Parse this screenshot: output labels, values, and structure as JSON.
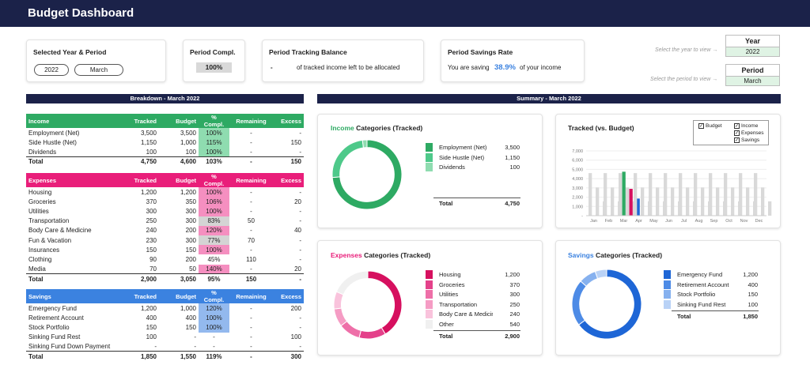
{
  "header": {
    "title": "Budget Dashboard"
  },
  "kpi": {
    "selected_label": "Selected Year & Period",
    "year_pill": "2022",
    "period_pill": "March",
    "compl_label": "Period Compl.",
    "compl_value": "100%",
    "tracking_label": "Period Tracking Balance",
    "tracking_value": "-",
    "tracking_text": "of tracked income left to be allocated",
    "savings_label": "Period Savings Rate",
    "savings_prefix": "You are saving",
    "savings_value": "38.9%",
    "savings_suffix": "of your income"
  },
  "selectors": {
    "year_hint": "Select the year to view →",
    "year_label": "Year",
    "year_value": "2022",
    "period_hint": "Select the period to view →",
    "period_label": "Period",
    "period_value": "March"
  },
  "breakdown_title": "Breakdown - March 2022",
  "summary_title": "Summary - March 2022",
  "columns": [
    "Tracked",
    "Budget",
    "% Compl.",
    "Remaining",
    "Excess"
  ],
  "income": {
    "name": "Income",
    "color": "#2eaa63",
    "rows": [
      {
        "name": "Employment (Net)",
        "tracked": "3,500",
        "budget": "3,500",
        "pct": "100%",
        "remaining": "-",
        "excess": "-",
        "fill": "#8fdcb0"
      },
      {
        "name": "Side Hustle (Net)",
        "tracked": "1,150",
        "budget": "1,000",
        "pct": "115%",
        "remaining": "-",
        "excess": "150",
        "fill": "#8fdcb0"
      },
      {
        "name": "Dividends",
        "tracked": "100",
        "budget": "100",
        "pct": "100%",
        "remaining": "-",
        "excess": "-",
        "fill": "#8fdcb0"
      }
    ],
    "total": {
      "name": "Total",
      "tracked": "4,750",
      "budget": "4,600",
      "pct": "103%",
      "remaining": "-",
      "excess": "150"
    }
  },
  "expenses": {
    "name": "Expenses",
    "color": "#e91e7a",
    "rows": [
      {
        "name": "Housing",
        "tracked": "1,200",
        "budget": "1,200",
        "pct": "100%",
        "remaining": "-",
        "excess": "-",
        "fill": "#f58fc0"
      },
      {
        "name": "Groceries",
        "tracked": "370",
        "budget": "350",
        "pct": "106%",
        "remaining": "-",
        "excess": "20",
        "fill": "#f58fc0"
      },
      {
        "name": "Utilities",
        "tracked": "300",
        "budget": "300",
        "pct": "100%",
        "remaining": "-",
        "excess": "-",
        "fill": "#f58fc0"
      },
      {
        "name": "Transportation",
        "tracked": "250",
        "budget": "300",
        "pct": "83%",
        "remaining": "50",
        "excess": "-",
        "fill": "#d4d4d4"
      },
      {
        "name": "Body Care & Medicine",
        "tracked": "240",
        "budget": "200",
        "pct": "120%",
        "remaining": "-",
        "excess": "40",
        "fill": "#f58fc0"
      },
      {
        "name": "Fun & Vacation",
        "tracked": "230",
        "budget": "300",
        "pct": "77%",
        "remaining": "70",
        "excess": "-",
        "fill": "#d4d4d4"
      },
      {
        "name": "Insurances",
        "tracked": "150",
        "budget": "150",
        "pct": "100%",
        "remaining": "-",
        "excess": "-",
        "fill": "#f58fc0"
      },
      {
        "name": "Clothing",
        "tracked": "90",
        "budget": "200",
        "pct": "45%",
        "remaining": "110",
        "excess": "-",
        "fill": "#ffffff"
      },
      {
        "name": "Media",
        "tracked": "70",
        "budget": "50",
        "pct": "140%",
        "remaining": "-",
        "excess": "20",
        "fill": "#f58fc0"
      }
    ],
    "total": {
      "name": "Total",
      "tracked": "2,900",
      "budget": "3,050",
      "pct": "95%",
      "remaining": "150",
      "excess": "-"
    }
  },
  "savings": {
    "name": "Savings",
    "color": "#3b82e0",
    "rows": [
      {
        "name": "Emergency Fund",
        "tracked": "1,200",
        "budget": "1,000",
        "pct": "120%",
        "remaining": "-",
        "excess": "200",
        "fill": "#93b9ee"
      },
      {
        "name": "Retirement Account",
        "tracked": "400",
        "budget": "400",
        "pct": "100%",
        "remaining": "-",
        "excess": "-",
        "fill": "#93b9ee"
      },
      {
        "name": "Stock Portfolio",
        "tracked": "150",
        "budget": "150",
        "pct": "100%",
        "remaining": "-",
        "excess": "-",
        "fill": "#93b9ee"
      },
      {
        "name": "Sinking Fund Rest",
        "tracked": "100",
        "budget": "-",
        "pct": "-",
        "remaining": "-",
        "excess": "100",
        "fill": "#ffffff"
      },
      {
        "name": "Sinking Fund Down Payment",
        "tracked": "-",
        "budget": "-",
        "pct": "-",
        "remaining": "-",
        "excess": "-",
        "fill": "#ffffff"
      }
    ],
    "total": {
      "name": "Total",
      "tracked": "1,850",
      "budget": "1,550",
      "pct": "119%",
      "remaining": "-",
      "excess": "300"
    }
  },
  "income_chart": {
    "title_colored": "Income",
    "title_rest": " Categories (Tracked)",
    "items": [
      {
        "name": "Employment (Net)",
        "value": "3,500",
        "color": "#2eaa63"
      },
      {
        "name": "Side Hustle (Net)",
        "value": "1,150",
        "color": "#4ec98a"
      },
      {
        "name": "Dividends",
        "value": "100",
        "color": "#8fdcb0"
      }
    ],
    "total_label": "Total",
    "total_value": "4,750"
  },
  "expenses_chart": {
    "title_colored": "Expenses",
    "title_rest": " Categories (Tracked)",
    "items": [
      {
        "name": "Housing",
        "value": "1,200",
        "color": "#d6105f"
      },
      {
        "name": "Groceries",
        "value": "370",
        "color": "#e4418a"
      },
      {
        "name": "Utilities",
        "value": "300",
        "color": "#ee6fa8"
      },
      {
        "name": "Transportation",
        "value": "250",
        "color": "#f59cc4"
      },
      {
        "name": "Body Care & Medicine",
        "value": "240",
        "color": "#f9c3dc"
      },
      {
        "name": "Other",
        "value": "540",
        "color": "#f0f0f0"
      }
    ],
    "total_label": "Total",
    "total_value": "2,900"
  },
  "savings_chart": {
    "title_colored": "Savings",
    "title_rest": " Categories (Tracked)",
    "items": [
      {
        "name": "Emergency Fund",
        "value": "1,200",
        "color": "#1e66d6"
      },
      {
        "name": "Retirement Account",
        "value": "400",
        "color": "#4d8be6"
      },
      {
        "name": "Stock Portfolio",
        "value": "150",
        "color": "#86b1ef"
      },
      {
        "name": "Sinking Fund Rest",
        "value": "100",
        "color": "#b9d2f6"
      }
    ],
    "total_label": "Total",
    "total_value": "1,850"
  },
  "tracked_chart": {
    "title": "Tracked (vs. Budget)",
    "legend": [
      "Budget",
      "Income",
      "Expenses",
      "Savings"
    ],
    "y_ticks": [
      "7,000",
      "6,000",
      "5,000",
      "4,000",
      "3,000",
      "2,000",
      "1,000",
      "-"
    ]
  },
  "chart_data": {
    "type": "bar",
    "title": "Tracked (vs. Budget)",
    "categories": [
      "Jan",
      "Feb",
      "Mar",
      "Apr",
      "May",
      "Jun",
      "Jul",
      "Aug",
      "Sep",
      "Oct",
      "Nov",
      "Dec"
    ],
    "ylim": [
      0,
      7000
    ],
    "series": [
      {
        "name": "Budget",
        "color": "#d9d9d9",
        "values": [
          4600,
          4600,
          4600,
          4600,
          4600,
          4600,
          4600,
          4600,
          4600,
          4600,
          4600,
          4600
        ]
      },
      {
        "name": "Budget",
        "color": "#d9d9d9",
        "values": [
          3050,
          3050,
          3050,
          3050,
          3050,
          3050,
          3050,
          3050,
          3050,
          3050,
          3050,
          3050
        ]
      },
      {
        "name": "Budget",
        "color": "#d9d9d9",
        "values": [
          1550,
          1550,
          1550,
          1550,
          1550,
          1550,
          1550,
          1550,
          1550,
          1550,
          1550,
          1550
        ]
      },
      {
        "name": "Income",
        "color": "#2eaa63",
        "values": [
          null,
          null,
          4750,
          null,
          null,
          null,
          null,
          null,
          null,
          null,
          null,
          null
        ]
      },
      {
        "name": "Expenses",
        "color": "#d6105f",
        "values": [
          null,
          null,
          2900,
          null,
          null,
          null,
          null,
          null,
          null,
          null,
          null,
          null
        ]
      },
      {
        "name": "Savings",
        "color": "#1e66d6",
        "values": [
          null,
          null,
          1850,
          null,
          null,
          null,
          null,
          null,
          null,
          null,
          null,
          null
        ]
      }
    ],
    "legend_position": "top-right",
    "grid": true
  }
}
